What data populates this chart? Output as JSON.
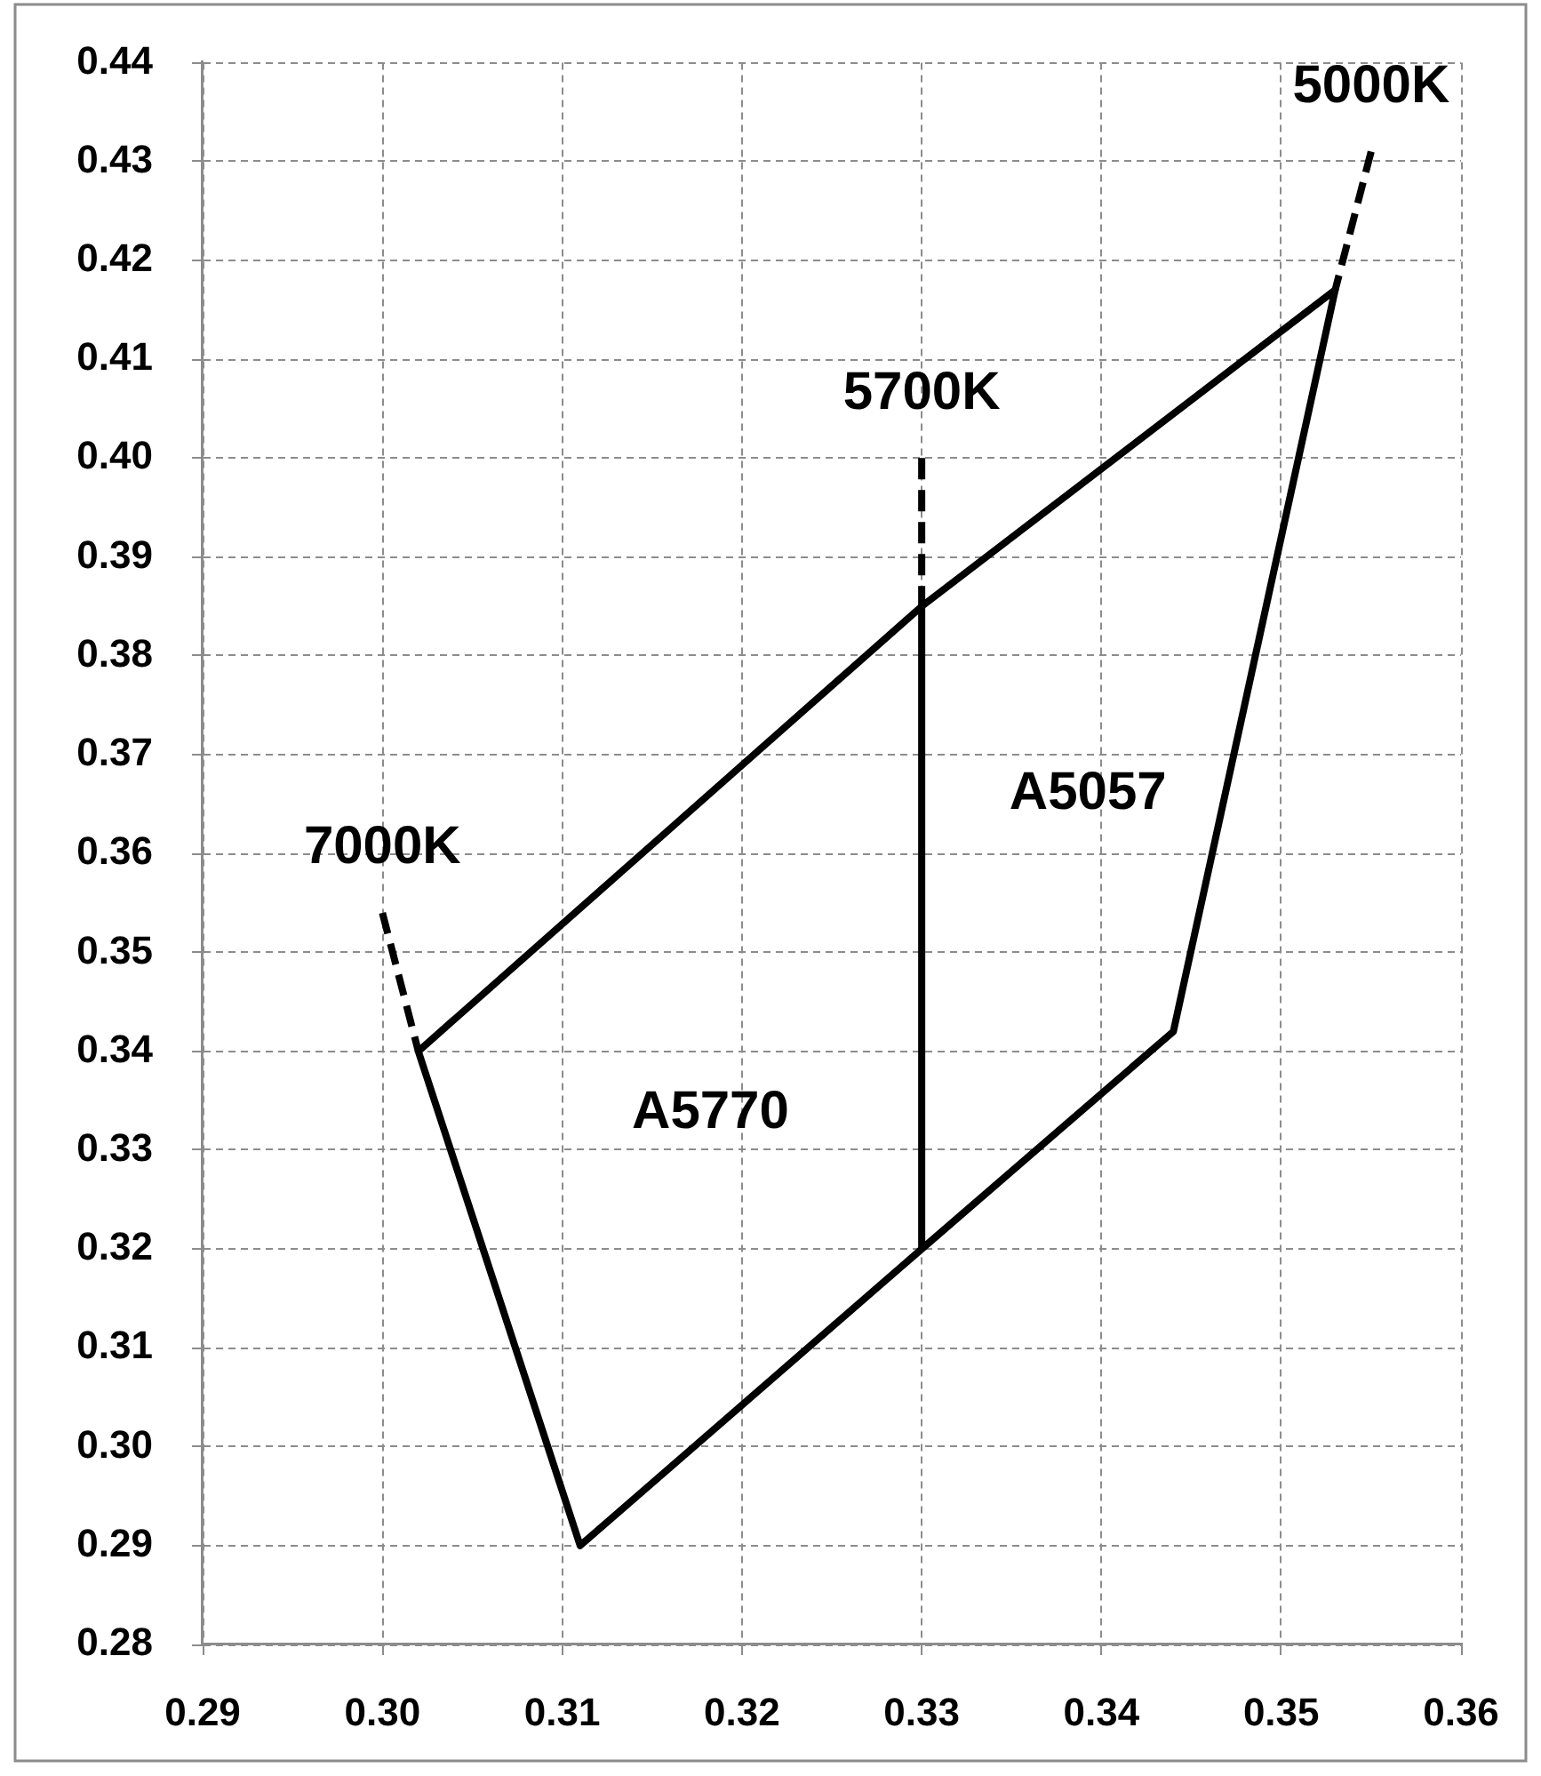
{
  "chart_data": {
    "type": "line",
    "xlim": [
      0.29,
      0.36
    ],
    "xticks": [
      0.29,
      {
        "value": 0.3,
        "label": "0.30"
      },
      0.31,
      0.32,
      0.33,
      0.34,
      0.35,
      0.36
    ],
    "ylim": [
      0.28,
      0.44
    ],
    "yticks": [
      0.28,
      0.29,
      {
        "value": 0.3,
        "label": "0.30"
      },
      0.31,
      0.32,
      0.33,
      0.34,
      0.35,
      0.36,
      0.37,
      0.38,
      0.39,
      {
        "value": 0.4,
        "label": "0.40"
      },
      0.41,
      0.42,
      0.43,
      0.44
    ],
    "grid": true,
    "legend": false,
    "marker": "none",
    "series": [
      {
        "color": "#000000",
        "line_style": "solid",
        "x": [
          0.33,
          0.353,
          0.344,
          0.33,
          0.311,
          0.302,
          0.33,
          0.33
        ],
        "values": [
          0.385,
          0.417,
          0.342,
          0.32,
          0.29,
          0.34,
          0.385,
          0.32
        ]
      },
      {
        "color": "#000000",
        "line_style": "dashed",
        "x": [
          0.3,
          0.302
        ],
        "values": [
          0.354,
          0.34
        ]
      },
      {
        "color": "#000000",
        "line_style": "dashed",
        "x": [
          0.33,
          0.33
        ],
        "values": [
          0.4,
          0.385
        ]
      },
      {
        "color": "#000000",
        "line_style": "dashed",
        "x": [
          0.355,
          0.353
        ],
        "values": [
          0.431,
          0.417
        ]
      }
    ],
    "annotations": [
      {
        "text": "5000K",
        "x": 0.355,
        "y": 0.431
      },
      {
        "text": "5700K",
        "x": 0.33,
        "y": 0.4
      },
      {
        "text": "7000K",
        "x": 0.3,
        "y": 0.354
      },
      "A5057",
      "A5770"
    ]
  }
}
